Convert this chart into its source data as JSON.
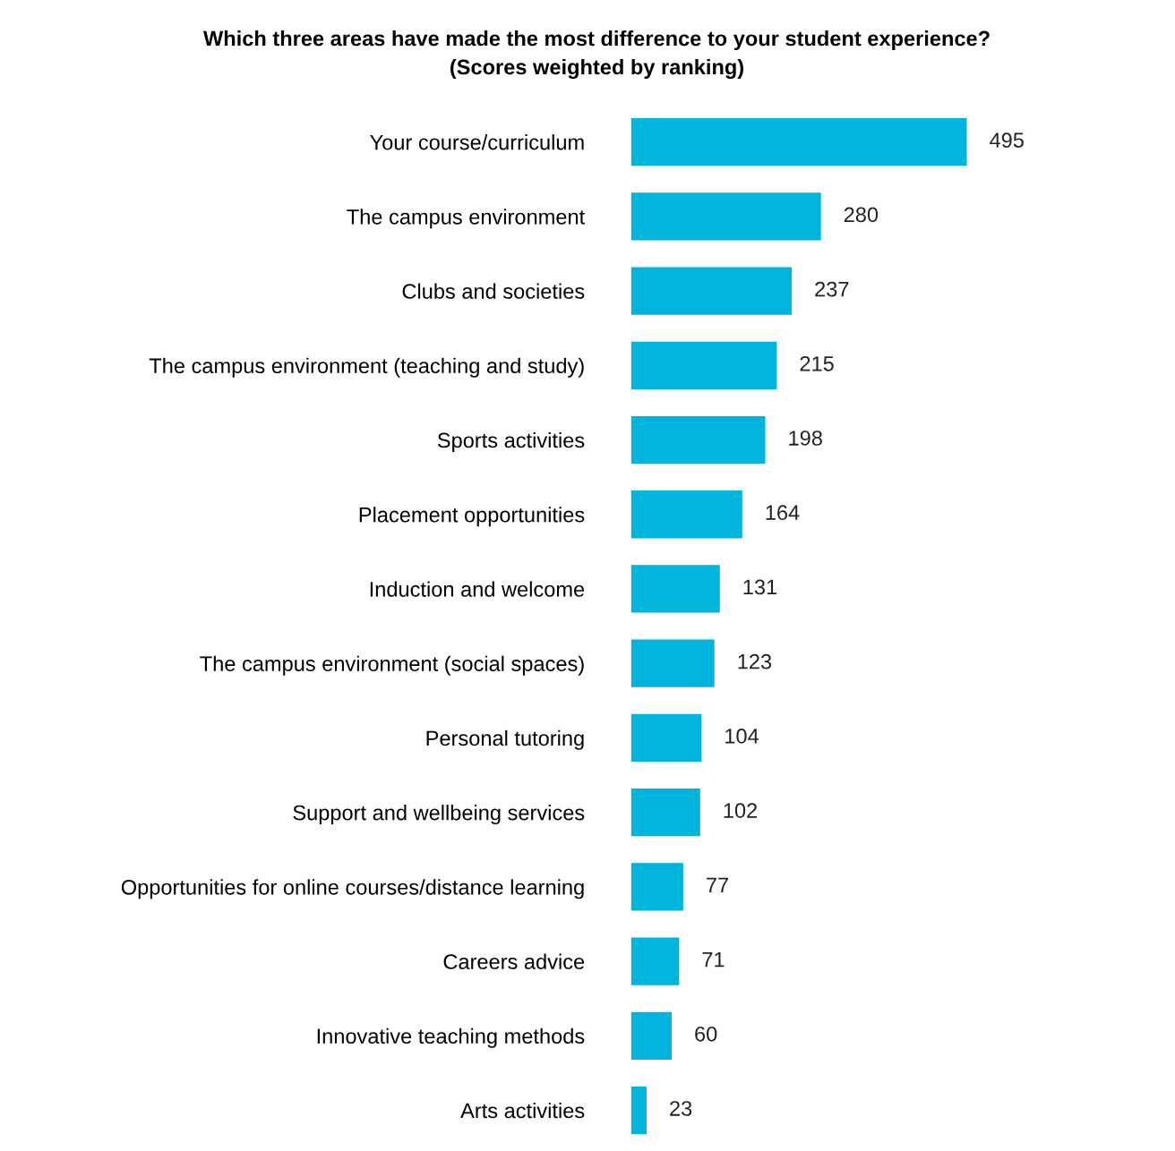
{
  "chart_data": {
    "type": "bar",
    "orientation": "horizontal",
    "title": "Which three areas have made the most difference to your student experience?",
    "subtitle": "(Scores weighted by ranking)",
    "categories": [
      "Your course/curriculum",
      "The campus environment",
      "Clubs and societies",
      "The campus environment (teaching and study)",
      "Sports activities",
      "Placement opportunities",
      "Induction and welcome",
      "The campus environment (social spaces)",
      "Personal tutoring",
      "Support and wellbeing services",
      "Opportunities for online courses/distance learning",
      "Careers advice",
      "Innovative teaching methods",
      "Arts activities"
    ],
    "values": [
      495,
      280,
      237,
      215,
      198,
      164,
      131,
      123,
      104,
      102,
      77,
      71,
      60,
      23
    ],
    "color": "#00b4dc",
    "data_labels": true,
    "grid": false,
    "legend": false,
    "tick_labels": "y"
  }
}
